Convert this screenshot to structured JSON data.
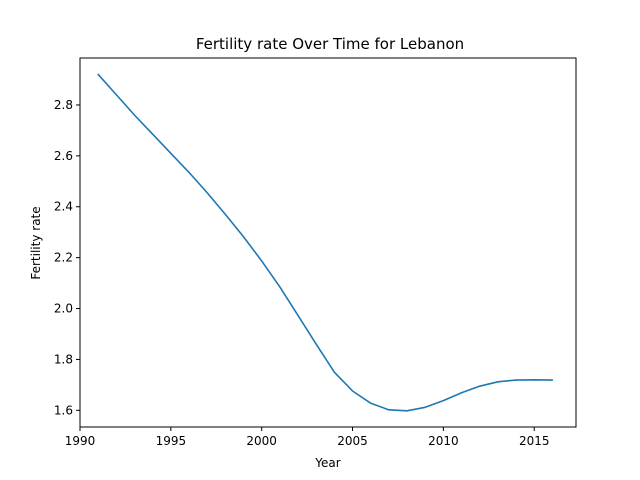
{
  "chart_data": {
    "type": "line",
    "title": "Fertility rate Over Time for Lebanon",
    "xlabel": "Year",
    "ylabel": "Fertility rate",
    "xlim": [
      1990.0,
      2017.3
    ],
    "ylim": [
      1.5345,
      2.9845
    ],
    "grid": false,
    "x_ticks": [
      1990,
      1995,
      2000,
      2005,
      2010,
      2015
    ],
    "y_ticks": [
      1.6,
      1.8,
      2.0,
      2.2,
      2.4,
      2.6,
      2.8
    ],
    "series": [
      {
        "color": "#1f77b4",
        "x": [
          1991,
          1992,
          1993,
          1994,
          1995,
          1996,
          1997,
          1998,
          1999,
          2000,
          2001,
          2002,
          2003,
          2004,
          2005,
          2006,
          2007,
          2008,
          2009,
          2010,
          2011,
          2012,
          2013,
          2014,
          2015,
          2016
        ],
        "y": [
          2.92,
          2.84,
          2.76,
          2.685,
          2.61,
          2.535,
          2.455,
          2.37,
          2.282,
          2.187,
          2.085,
          1.973,
          1.86,
          1.75,
          1.676,
          1.628,
          1.602,
          1.598,
          1.612,
          1.638,
          1.669,
          1.695,
          1.712,
          1.719,
          1.72,
          1.719
        ]
      }
    ]
  }
}
